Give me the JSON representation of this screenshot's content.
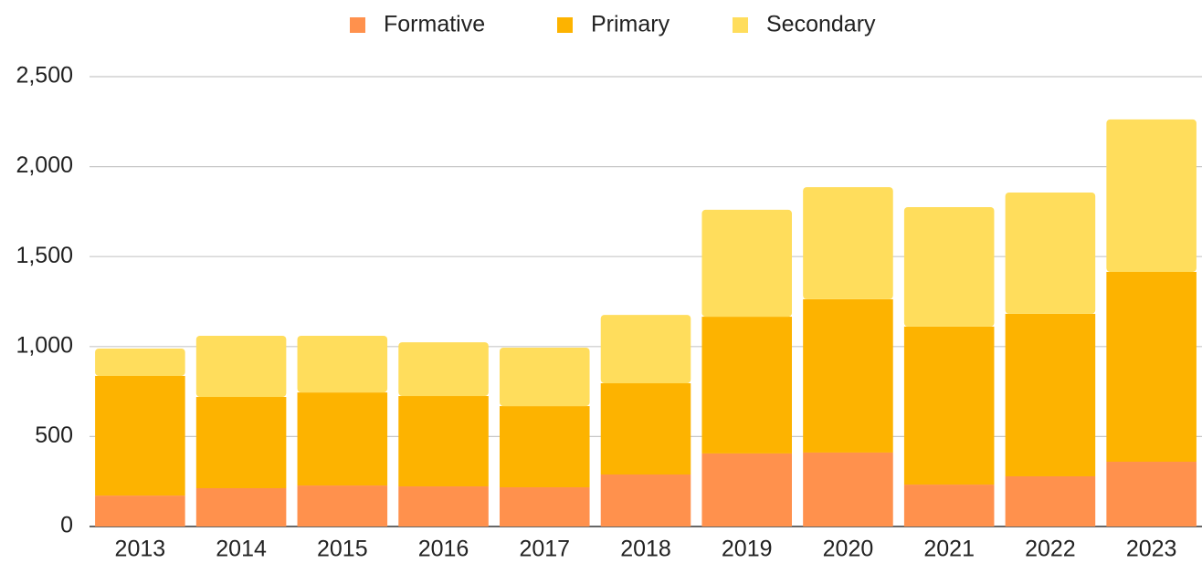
{
  "chart_data": {
    "type": "stacked_bar",
    "categories": [
      "2013",
      "2014",
      "2015",
      "2016",
      "2017",
      "2018",
      "2019",
      "2020",
      "2021",
      "2022",
      "2023"
    ],
    "series": [
      {
        "name": "Formative",
        "color": "#ff914d",
        "values": [
          172,
          213,
          228,
          223,
          218,
          289,
          406,
          411,
          233,
          279,
          360
        ]
      },
      {
        "name": "Primary",
        "color": "#fdb300",
        "values": [
          665,
          507,
          517,
          502,
          451,
          507,
          760,
          852,
          878,
          903,
          1055
        ]
      },
      {
        "name": "Secondary",
        "color": "#ffdd5c",
        "values": [
          152,
          340,
          315,
          299,
          325,
          380,
          594,
          623,
          664,
          674,
          847
        ]
      }
    ],
    "ylim": [
      0,
      2500
    ],
    "yticks": [
      0,
      500,
      {
        "value": 1000,
        "label": "1,000"
      },
      {
        "value": 1500,
        "label": "1,500"
      },
      {
        "value": 2000,
        "label": "2,000"
      },
      {
        "value": 2500,
        "label": "2,500"
      }
    ],
    "grid": true,
    "legend": "top"
  }
}
